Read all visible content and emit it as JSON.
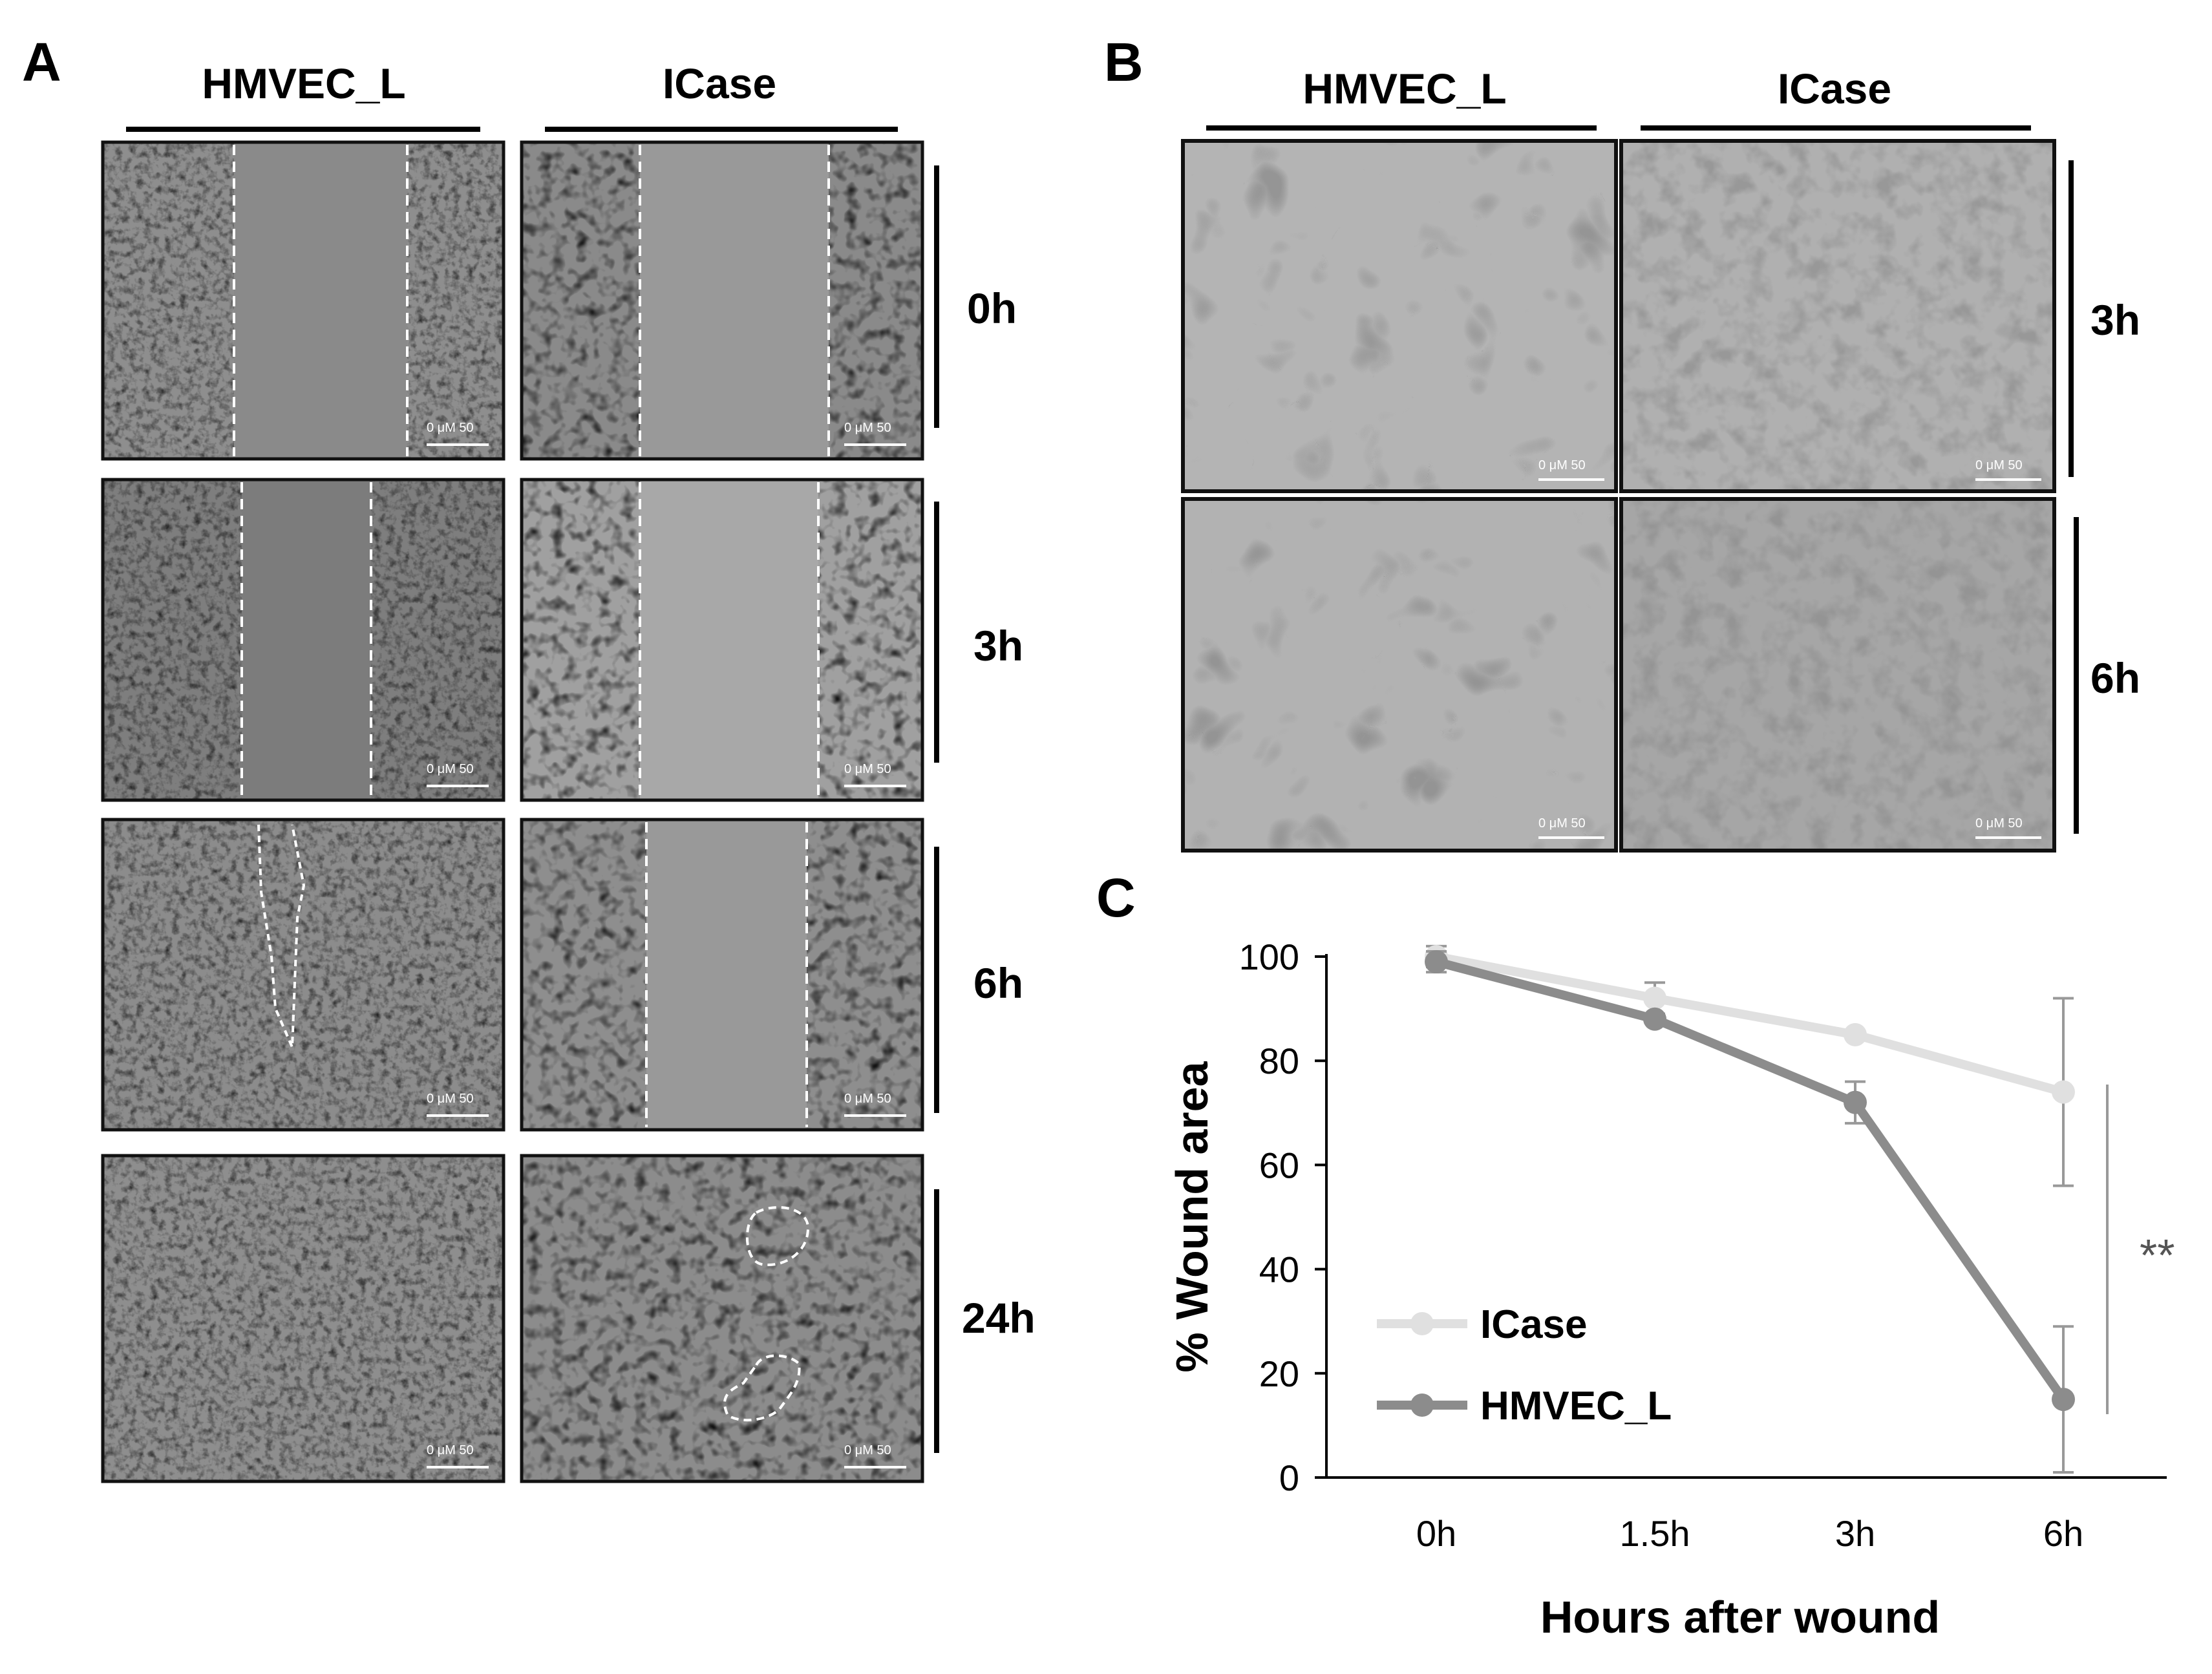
{
  "panel_a": {
    "letter": "A",
    "columns": [
      "HMVEC_L",
      "ICase"
    ],
    "rows": [
      "0h",
      "3h",
      "6h",
      "24h"
    ],
    "scale_bar": "0 μM 50"
  },
  "panel_b": {
    "letter": "B",
    "columns": [
      "HMVEC_L",
      "ICase"
    ],
    "rows": [
      "3h",
      "6h"
    ],
    "scale_bar": "0 μM 50"
  },
  "panel_c": {
    "letter": "C",
    "significance": "**"
  },
  "chart_data": {
    "type": "line",
    "xlabel": "Hours after wound",
    "ylabel": "% Wound area",
    "categories": [
      "0h",
      "1.5h",
      "3h",
      "6h"
    ],
    "ylim": [
      0,
      100
    ],
    "yticks": [
      0,
      20,
      40,
      60,
      80,
      100
    ],
    "grid": false,
    "legend_position": "bottom-left",
    "series": [
      {
        "name": "ICase",
        "color": "#e0e0e0",
        "values": [
          100,
          92,
          85,
          74
        ],
        "error": [
          2,
          3,
          0,
          18
        ]
      },
      {
        "name": "HMVEC_L",
        "color": "#8c8c8c",
        "values": [
          99,
          88,
          72,
          15
        ],
        "error": [
          2,
          0,
          4,
          14
        ]
      }
    ]
  }
}
